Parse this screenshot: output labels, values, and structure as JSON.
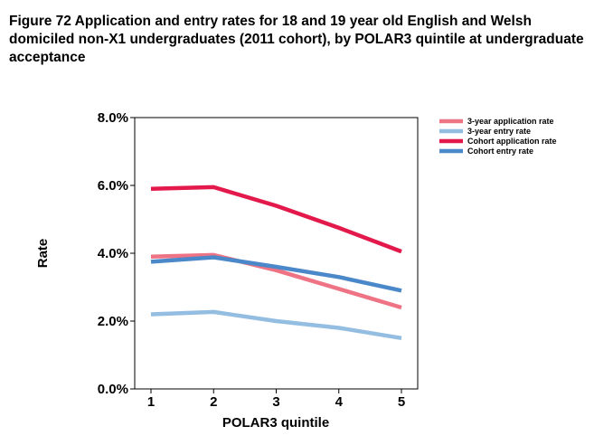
{
  "figure": {
    "title": "Figure 72 Application and entry rates for 18 and 19 year old English and Welsh domiciled non-X1 undergraduates (2011 cohort), by POLAR3 quintile at undergraduate acceptance"
  },
  "chart_data": {
    "type": "line",
    "title": "",
    "xlabel": "POLAR3 quintile",
    "ylabel": "Rate",
    "x": [
      1,
      2,
      3,
      4,
      5
    ],
    "x_tick_labels": [
      "1",
      "2",
      "3",
      "4",
      "5"
    ],
    "y_tick_labels": [
      "0.0%",
      "2.0%",
      "4.0%",
      "6.0%",
      "8.0%"
    ],
    "y_ticks": [
      0,
      2,
      4,
      6,
      8
    ],
    "ylim": [
      0,
      8
    ],
    "grid": false,
    "legend_position": "top-right",
    "series": [
      {
        "name": "3-year application rate",
        "color": "#ee7384",
        "values": [
          3.9,
          3.95,
          3.5,
          2.95,
          2.4
        ]
      },
      {
        "name": "3-year entry rate",
        "color": "#94bde2",
        "values": [
          2.2,
          2.27,
          2.0,
          1.8,
          1.5
        ]
      },
      {
        "name": "Cohort application rate",
        "color": "#e2194a",
        "values": [
          5.9,
          5.95,
          5.4,
          4.75,
          4.05
        ]
      },
      {
        "name": "Cohort entry rate",
        "color": "#4b88c9",
        "values": [
          3.75,
          3.88,
          3.6,
          3.3,
          2.9
        ]
      }
    ]
  }
}
